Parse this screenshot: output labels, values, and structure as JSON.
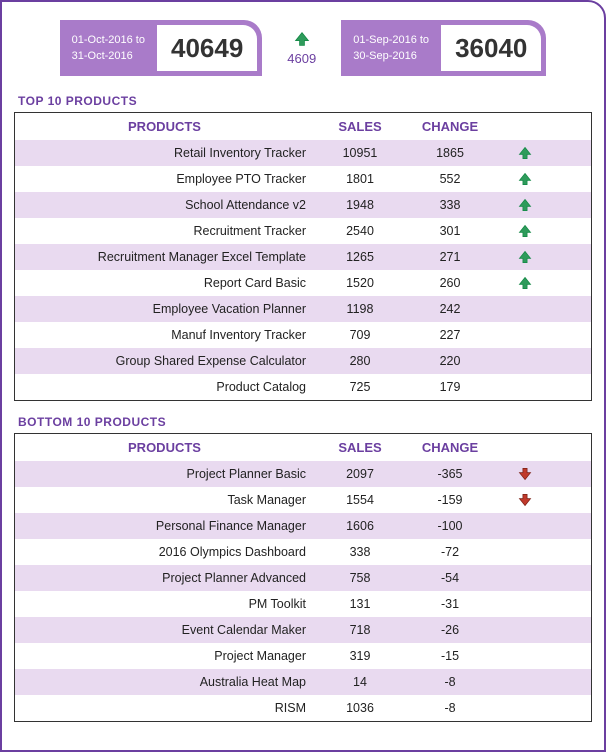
{
  "period_current": {
    "label": "01-Oct-2016 to\n31-Oct-2016",
    "total": "40649"
  },
  "period_previous": {
    "label": "01-Sep-2016 to\n30-Sep-2016",
    "total": "36040"
  },
  "delta": "4609",
  "top": {
    "title": "TOP 10 PRODUCTS",
    "headers": {
      "product": "PRODUCTS",
      "sales": "SALES",
      "change": "CHANGE"
    },
    "rows": [
      {
        "product": "Retail Inventory Tracker",
        "sales": "10951",
        "change": "1865",
        "arrow": "up"
      },
      {
        "product": "Employee PTO Tracker",
        "sales": "1801",
        "change": "552",
        "arrow": "up"
      },
      {
        "product": "School Attendance v2",
        "sales": "1948",
        "change": "338",
        "arrow": "up"
      },
      {
        "product": "Recruitment Tracker",
        "sales": "2540",
        "change": "301",
        "arrow": "up"
      },
      {
        "product": "Recruitment Manager Excel Template",
        "sales": "1265",
        "change": "271",
        "arrow": "up"
      },
      {
        "product": "Report Card Basic",
        "sales": "1520",
        "change": "260",
        "arrow": "up"
      },
      {
        "product": "Employee Vacation Planner",
        "sales": "1198",
        "change": "242",
        "arrow": ""
      },
      {
        "product": "Manuf Inventory Tracker",
        "sales": "709",
        "change": "227",
        "arrow": ""
      },
      {
        "product": "Group Shared Expense Calculator",
        "sales": "280",
        "change": "220",
        "arrow": ""
      },
      {
        "product": "Product Catalog",
        "sales": "725",
        "change": "179",
        "arrow": ""
      }
    ]
  },
  "bottom": {
    "title": "BOTTOM 10 PRODUCTS",
    "headers": {
      "product": "PRODUCTS",
      "sales": "SALES",
      "change": "CHANGE"
    },
    "rows": [
      {
        "product": "Project Planner Basic",
        "sales": "2097",
        "change": "-365",
        "arrow": "down"
      },
      {
        "product": "Task Manager",
        "sales": "1554",
        "change": "-159",
        "arrow": "down"
      },
      {
        "product": "Personal Finance Manager",
        "sales": "1606",
        "change": "-100",
        "arrow": ""
      },
      {
        "product": "2016 Olympics Dashboard",
        "sales": "338",
        "change": "-72",
        "arrow": ""
      },
      {
        "product": "Project Planner Advanced",
        "sales": "758",
        "change": "-54",
        "arrow": ""
      },
      {
        "product": "PM Toolkit",
        "sales": "131",
        "change": "-31",
        "arrow": ""
      },
      {
        "product": "Event Calendar Maker",
        "sales": "718",
        "change": "-26",
        "arrow": ""
      },
      {
        "product": "Project Manager",
        "sales": "319",
        "change": "-15",
        "arrow": ""
      },
      {
        "product": "Australia Heat Map",
        "sales": "14",
        "change": "-8",
        "arrow": ""
      },
      {
        "product": "RISM",
        "sales": "1036",
        "change": "-8",
        "arrow": ""
      }
    ]
  },
  "colors": {
    "accent": "#6b3fa0",
    "card_bg": "#a97bc9",
    "row_alt": "#e9daf0",
    "arrow_up": "#2e9b5b",
    "arrow_down": "#c0392b"
  }
}
